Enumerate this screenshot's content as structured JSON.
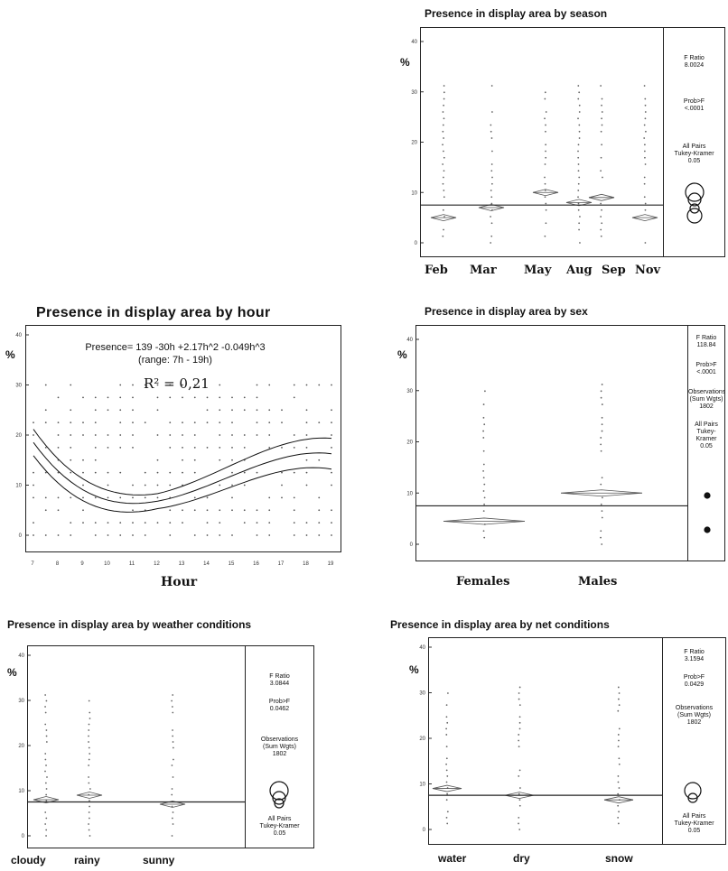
{
  "chart_data": [
    {
      "type": "box-diamond",
      "title": "Presence in display area by season",
      "ylabel": "%",
      "ylim": [
        0,
        40
      ],
      "yticks": [
        "0",
        "10",
        "20",
        "30",
        "40"
      ],
      "categories": [
        "Feb",
        "Mar",
        "May",
        "Aug",
        "Sep",
        "Nov"
      ],
      "means": [
        5,
        7,
        10,
        8,
        9,
        5
      ],
      "grand_mean": 7.5,
      "stats": {
        "f_label": "F Ratio",
        "f_value": "8.0024",
        "p_label": "Prob>F",
        "p_value": "<.0001",
        "tukey": "All Pairs\nTukey-Kramer\n0.05"
      }
    },
    {
      "type": "scatter",
      "title": "Presence in display area by hour",
      "ylabel": "%",
      "xlabel": "Hour",
      "ylim": [
        0,
        40
      ],
      "yticks": [
        "0",
        "10",
        "20",
        "30",
        "40"
      ],
      "xticks": [
        "7",
        "8",
        "9",
        "10",
        "11",
        "12",
        "13",
        "14",
        "15",
        "16",
        "17",
        "18",
        "19"
      ],
      "equation": "Presence= 139 -30h +2.17h^2 -0.049h^3",
      "range": "(range: 7h - 19h)",
      "r2": "R² = 0,21"
    },
    {
      "type": "box-diamond",
      "title": "Presence in display area by sex",
      "ylabel": "%",
      "ylim": [
        0,
        40
      ],
      "yticks": [
        "0",
        "10",
        "20",
        "30",
        "40"
      ],
      "categories": [
        "Females",
        "Males"
      ],
      "means": [
        4.5,
        10
      ],
      "grand_mean": 7.5,
      "stats": {
        "f_label": "F Ratio",
        "f_value": "118.84",
        "p_label": "Prob>F",
        "p_value": "<.0001",
        "obs": "Observations\n(Sum Wgts)\n1802",
        "tukey": "All Pairs\nTukey-\nKramer\n0.05"
      }
    },
    {
      "type": "box-diamond",
      "title": "Presence in display area by weather conditions",
      "ylabel": "%",
      "ylim": [
        0,
        40
      ],
      "yticks": [
        "0",
        "10",
        "20",
        "30",
        "40"
      ],
      "categories": [
        "cloudy",
        "rainy",
        "sunny"
      ],
      "means": [
        8,
        9,
        7
      ],
      "grand_mean": 7.5,
      "stats": {
        "f_label": "F Ratio",
        "f_value": "3.0844",
        "p_label": "Prob>F",
        "p_value": "0.0462",
        "obs": "Observations\n(Sum Wgts)\n1802",
        "tukey": "All Pairs\nTukey-Kramer\n0.05"
      }
    },
    {
      "type": "box-diamond",
      "title": "Presence in display area by net conditions",
      "ylabel": "%",
      "ylim": [
        0,
        40
      ],
      "yticks": [
        "0",
        "10",
        "20",
        "30",
        "40"
      ],
      "categories": [
        "water",
        "dry",
        "snow"
      ],
      "means": [
        9,
        7.5,
        6.5
      ],
      "grand_mean": 7.5,
      "stats": {
        "f_label": "F Ratio",
        "f_value": "3.1594",
        "p_label": "Prob>F",
        "p_value": "0.0429",
        "obs": "Observations\n(Sum Wgts)\n1802",
        "tukey": "All Pairs\nTukey-Kramer\n0.05"
      }
    }
  ]
}
